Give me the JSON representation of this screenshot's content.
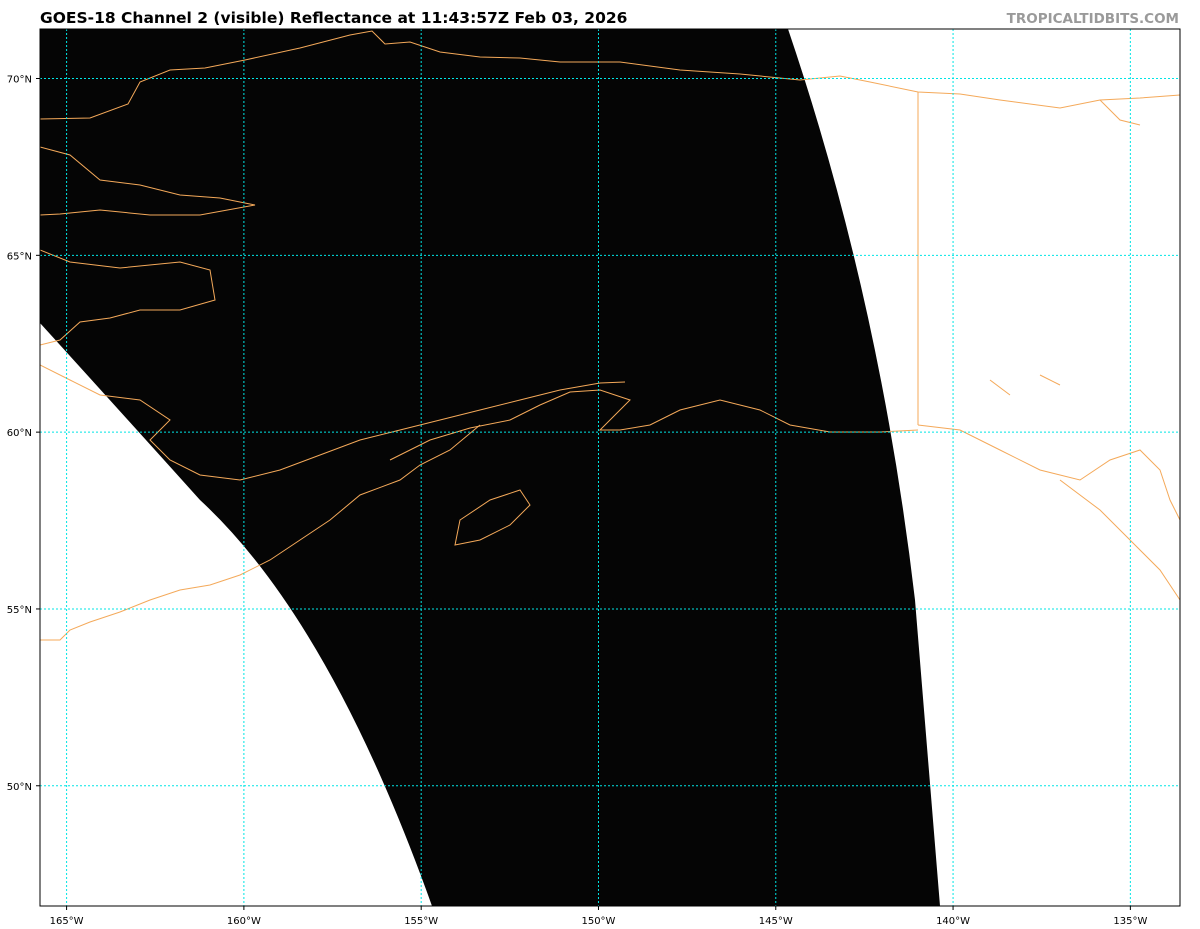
{
  "title": "GOES-18 Channel 2 (visible) Reflectance at 11:43:57Z Feb 03, 2026",
  "credit": "TROPICALTIDBITS.COM",
  "map": {
    "projection": "plate-carree",
    "lon_range": [
      -165.75,
      -133.6
    ],
    "lat_range": [
      46.6,
      71.4
    ],
    "lon_ticks": [
      {
        "value": -165,
        "label": "165°W"
      },
      {
        "value": -160,
        "label": "160°W"
      },
      {
        "value": -155,
        "label": "155°W"
      },
      {
        "value": -150,
        "label": "150°W"
      },
      {
        "value": -145,
        "label": "145°W"
      },
      {
        "value": -140,
        "label": "140°W"
      },
      {
        "value": -135,
        "label": "135°W"
      }
    ],
    "lat_ticks": [
      {
        "value": 70,
        "label": "70°N"
      },
      {
        "value": 65,
        "label": "65°N"
      },
      {
        "value": 60,
        "label": "60°N"
      },
      {
        "value": 55,
        "label": "55°N"
      },
      {
        "value": 50,
        "label": "50°N"
      }
    ],
    "colors": {
      "gridlines": "#00e5e5",
      "coastlines": "#f4a95a",
      "imagery": "#050505",
      "background": "#ffffff"
    }
  }
}
